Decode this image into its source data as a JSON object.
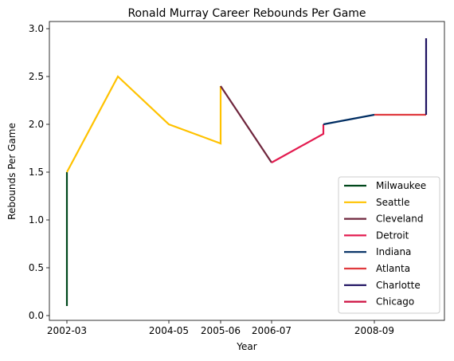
{
  "chart_data": {
    "type": "line",
    "title": "Ronald Murray Career Rebounds Per Game",
    "xlabel": "Year",
    "ylabel": "Rebounds Per Game",
    "x_ticks": [
      "2002-03",
      "2004-05",
      "2005-06",
      "2006-07",
      "2008-09"
    ],
    "y_ticks": [
      "0.0",
      "0.5",
      "1.0",
      "1.5",
      "2.0",
      "2.5",
      "3.0"
    ],
    "ylim": [
      0,
      3.05
    ],
    "grid": false,
    "legend_position": "lower right",
    "series": [
      {
        "name": "Milwaukee",
        "color": "#00471b",
        "points": [
          [
            "2002-03",
            0.1
          ],
          [
            "2002-03",
            1.5
          ]
        ]
      },
      {
        "name": "Seattle",
        "color": "#ffc200",
        "points": [
          [
            "2002-03",
            1.5
          ],
          [
            "2003-04",
            2.5
          ],
          [
            "2004-05",
            2.0
          ],
          [
            "2005-06",
            1.8
          ],
          [
            "2005-06",
            2.4
          ]
        ]
      },
      {
        "name": "Cleveland",
        "color": "#6f263d",
        "points": [
          [
            "2005-06",
            2.4
          ],
          [
            "2006-07",
            1.6
          ]
        ]
      },
      {
        "name": "Detroit",
        "color": "#e31b4f",
        "points": [
          [
            "2006-07",
            1.6
          ],
          [
            "2007-08",
            1.9
          ],
          [
            "2007-08",
            2.0
          ]
        ]
      },
      {
        "name": "Indiana",
        "color": "#002d62",
        "points": [
          [
            "2007-08",
            2.0
          ],
          [
            "2008-09",
            2.1
          ]
        ]
      },
      {
        "name": "Atlanta",
        "color": "#e03a3e",
        "points": [
          [
            "2008-09",
            2.1
          ],
          [
            "2009-10",
            2.1
          ]
        ]
      },
      {
        "name": "Charlotte",
        "color": "#1d1160",
        "points": [
          [
            "2009-10",
            2.1
          ],
          [
            "2009-10",
            2.9
          ]
        ]
      },
      {
        "name": "Chicago",
        "color": "#ce1141",
        "points": []
      }
    ]
  }
}
